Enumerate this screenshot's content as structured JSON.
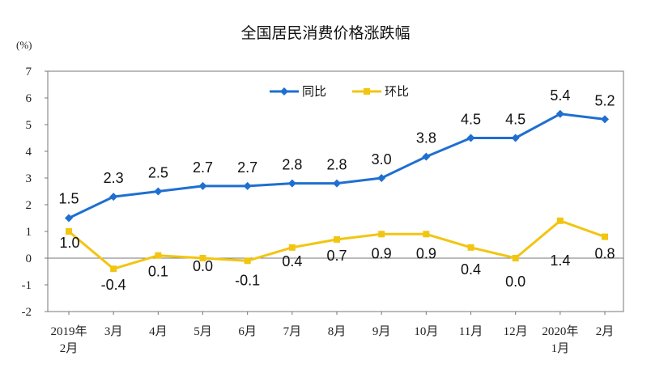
{
  "chart_data": {
    "type": "line",
    "title": "全国居民消费价格涨跌幅",
    "ylabel": "(%)",
    "ylim": [
      -2,
      7
    ],
    "yticks": [
      "7",
      "6",
      "5",
      "4",
      "3",
      "2",
      "1",
      "0",
      "-1",
      "-2"
    ],
    "categories": [
      [
        "2019年",
        "2月"
      ],
      [
        "3月"
      ],
      [
        "4月"
      ],
      [
        "5月"
      ],
      [
        "6月"
      ],
      [
        "7月"
      ],
      [
        "8月"
      ],
      [
        "9月"
      ],
      [
        "10月"
      ],
      [
        "11月"
      ],
      [
        "12月"
      ],
      [
        "2020年",
        "1月"
      ],
      [
        "2月"
      ]
    ],
    "legend_position": "top-left",
    "series": [
      {
        "name": "同比",
        "color": "#1f6fd0",
        "marker": "diamond",
        "values": [
          1.5,
          2.3,
          2.5,
          2.7,
          2.7,
          2.8,
          2.8,
          3.0,
          3.8,
          4.5,
          4.5,
          5.4,
          5.2
        ],
        "labels": [
          "1.5",
          "2.3",
          "2.5",
          "2.7",
          "2.7",
          "2.8",
          "2.8",
          "3.0",
          "3.8",
          "4.5",
          "4.5",
          "5.4",
          "5.2"
        ]
      },
      {
        "name": "环比",
        "color": "#f2c511",
        "marker": "square",
        "values": [
          1.0,
          -0.4,
          0.1,
          0.0,
          -0.1,
          0.4,
          0.7,
          0.9,
          0.9,
          0.4,
          0.0,
          1.4,
          0.8
        ],
        "labels": [
          "1.0",
          "-0.4",
          "0.1",
          "0.0",
          "-0.1",
          "0.4",
          "0.7",
          "0.9",
          "0.9",
          "0.4",
          "0.0",
          "1.4",
          "0.8"
        ]
      }
    ]
  }
}
